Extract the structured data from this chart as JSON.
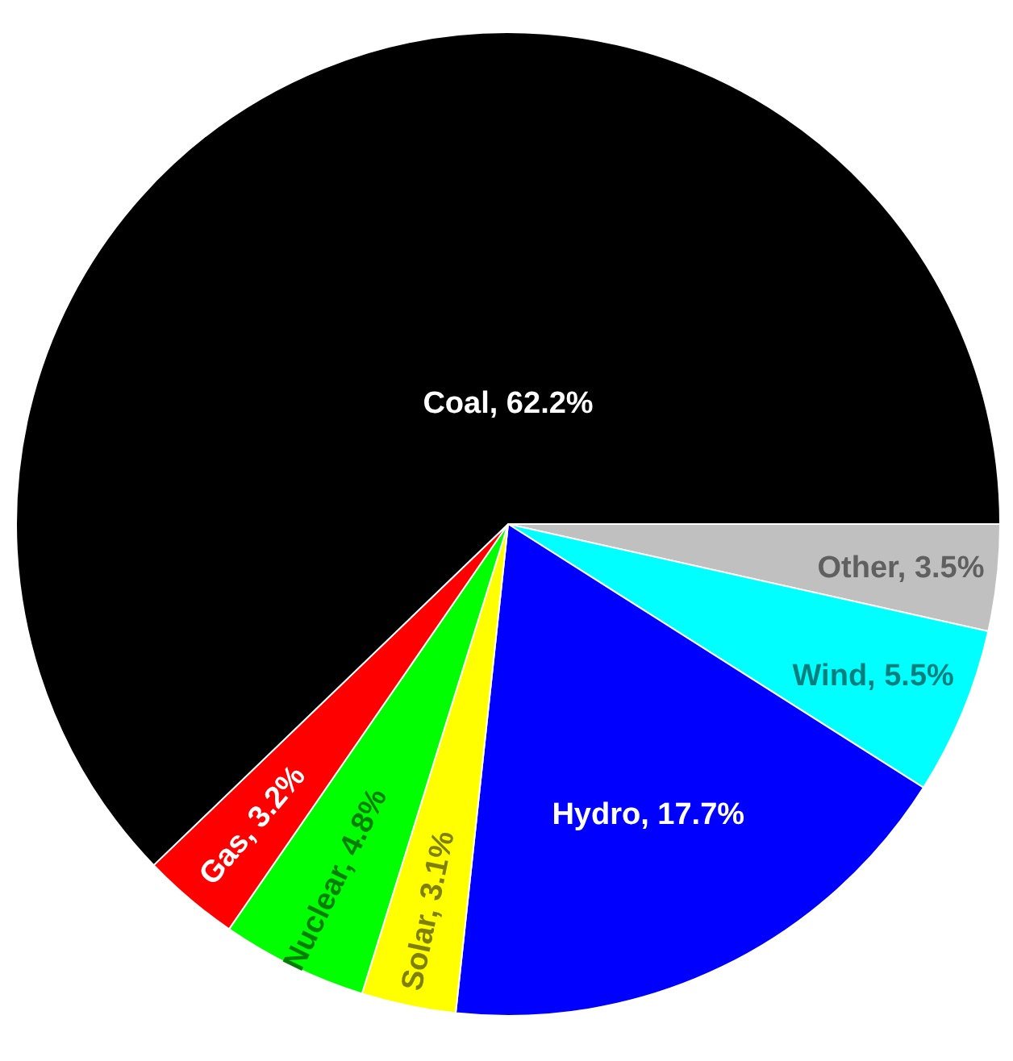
{
  "chart_data": {
    "type": "pie",
    "categories": [
      "Other",
      "Wind",
      "Hydro",
      "Solar",
      "Nuclear",
      "Gas",
      "Coal"
    ],
    "values": [
      3.5,
      5.5,
      17.7,
      3.1,
      4.8,
      3.2,
      62.2
    ],
    "colors": [
      "#c0c0c0",
      "#00ffff",
      "#0000ff",
      "#ffff00",
      "#00ff00",
      "#ff0000",
      "#000000"
    ],
    "value_labels": [
      "3.5%",
      "5.5%",
      "17.7%",
      "3.1%",
      "4.8%",
      "3.2%",
      "62.2%"
    ]
  }
}
